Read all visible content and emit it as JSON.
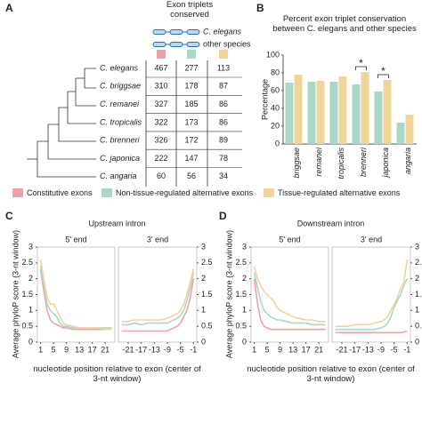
{
  "panel_labels": [
    "A",
    "B",
    "C",
    "D"
  ],
  "table": {
    "header": {
      "title": "Exon triplets conserved",
      "ref_label": "C. elegans",
      "other_label": "other species"
    },
    "column_colors": [
      "#eba3a8",
      "#a9d8c8",
      "#f1d49a"
    ],
    "rows": [
      [
        "C. elegans",
        "467",
        "277",
        "113"
      ],
      [
        "C. briggsae",
        "310",
        "178",
        "87"
      ],
      [
        "C. remanei",
        "327",
        "185",
        "86"
      ],
      [
        "C. tropicalis",
        "322",
        "173",
        "86"
      ],
      [
        "C. brenneri",
        "326",
        "172",
        "89"
      ],
      [
        "C. japonica",
        "222",
        "147",
        "78"
      ],
      [
        "C. angaria",
        "60",
        "56",
        "34"
      ]
    ]
  },
  "line_panels": [
    {
      "title": "Upstream intron",
      "xlabel": "nucleotide position relative to exon (center of 3-nt window)",
      "ylabel": "Average phyloP score (3-nt window)"
    },
    {
      "title": "Downstream intron",
      "xlabel": "nucleotide position relative to exon (center of 3-nt window)",
      "ylabel": "Average phyloP score (3-nt window)"
    }
  ],
  "chart_data": [
    {
      "type": "bar",
      "title": "Percent exon triplet conservation between C. elegans and other species",
      "ylabel": "Percentage",
      "categories": [
        "briggsae",
        "remanei",
        "tropicalis",
        "brenneri",
        "japonica",
        "angaria"
      ],
      "series": [
        {
          "color": "#a9d8c8",
          "values": [
            69,
            70,
            70,
            67,
            59,
            24
          ]
        },
        {
          "color": "#f1d49a",
          "values": [
            78,
            71,
            76,
            81,
            72,
            33
          ]
        }
      ],
      "annotations": [
        {
          "text": "*",
          "category": "brenneri"
        },
        {
          "text": "*",
          "category": "japonica"
        }
      ],
      "ylim": [
        0,
        100
      ],
      "yticks": [
        0,
        20,
        40,
        60,
        80,
        100
      ]
    },
    {
      "type": "line",
      "title": "5' end",
      "yaxis_side": "left",
      "x": [
        1,
        2,
        3,
        4,
        5,
        6,
        7,
        8,
        9,
        11,
        13,
        15,
        17,
        19,
        21,
        23
      ],
      "series": [
        {
          "name": "Constitutive exons",
          "color": "#eba3a8",
          "values": [
            2.3,
            1.6,
            1.0,
            0.7,
            0.6,
            0.55,
            0.5,
            0.45,
            0.45,
            0.4,
            0.4,
            0.4,
            0.4,
            0.4,
            0.4,
            0.4
          ]
        },
        {
          "name": "Non-tissue-regulated alternative exons",
          "color": "#a9d8c8",
          "values": [
            2.4,
            1.8,
            1.2,
            1.0,
            0.9,
            0.8,
            0.6,
            0.5,
            0.5,
            0.45,
            0.45,
            0.45,
            0.45,
            0.45,
            0.45,
            0.45
          ]
        },
        {
          "name": "Tissue-regulated alternative exons",
          "color": "#f1d49a",
          "values": [
            2.6,
            2.0,
            1.4,
            1.2,
            1.2,
            1.0,
            0.8,
            0.6,
            0.55,
            0.5,
            0.45,
            0.45,
            0.45,
            0.45,
            0.4,
            0.4
          ]
        }
      ],
      "xlim": [
        0,
        24
      ],
      "xticks": [
        1,
        5,
        9,
        13,
        17,
        21
      ],
      "ylim": [
        0,
        3
      ],
      "yticks": [
        0,
        0.5,
        1,
        1.5,
        2,
        2.5,
        3
      ]
    },
    {
      "type": "line",
      "title": "3' end",
      "yaxis_side": "right",
      "x": [
        -23,
        -21,
        -19,
        -17,
        -15,
        -13,
        -11,
        -9,
        -8,
        -7,
        -6,
        -5,
        -4,
        -3,
        -2,
        -1
      ],
      "series": [
        {
          "color": "#eba3a8",
          "values": [
            0.35,
            0.35,
            0.35,
            0.35,
            0.35,
            0.35,
            0.35,
            0.35,
            0.4,
            0.45,
            0.5,
            0.6,
            0.8,
            1.0,
            1.4,
            2.0
          ]
        },
        {
          "color": "#a9d8c8",
          "values": [
            0.55,
            0.55,
            0.6,
            0.55,
            0.6,
            0.6,
            0.6,
            0.6,
            0.65,
            0.7,
            0.75,
            0.85,
            1.0,
            1.3,
            1.7,
            2.2
          ]
        },
        {
          "color": "#f1d49a",
          "values": [
            0.65,
            0.65,
            0.7,
            0.7,
            0.7,
            0.7,
            0.7,
            0.75,
            0.8,
            0.85,
            0.9,
            1.0,
            1.2,
            1.5,
            1.9,
            2.3
          ]
        }
      ],
      "xlim": [
        -24,
        0
      ],
      "xticks": [
        -21,
        -17,
        -13,
        -9,
        -5,
        -1
      ],
      "ylim": [
        0,
        3
      ],
      "yticks": [
        0,
        0.5,
        1,
        1.5,
        2,
        2.5,
        3
      ]
    },
    {
      "type": "line",
      "title": "5' end",
      "yaxis_side": "left",
      "x": [
        1,
        2,
        3,
        4,
        5,
        6,
        7,
        8,
        9,
        11,
        13,
        15,
        17,
        19,
        21,
        23
      ],
      "series": [
        {
          "color": "#eba3a8",
          "values": [
            2.0,
            1.2,
            0.7,
            0.5,
            0.45,
            0.4,
            0.4,
            0.4,
            0.4,
            0.4,
            0.4,
            0.4,
            0.4,
            0.4,
            0.4,
            0.4
          ]
        },
        {
          "color": "#a9d8c8",
          "values": [
            2.2,
            1.7,
            1.3,
            1.0,
            0.9,
            0.8,
            0.75,
            0.7,
            0.7,
            0.65,
            0.6,
            0.6,
            0.6,
            0.55,
            0.55,
            0.55
          ]
        },
        {
          "color": "#f1d49a",
          "values": [
            2.4,
            2.0,
            1.8,
            1.6,
            1.5,
            1.4,
            1.3,
            1.1,
            1.0,
            0.9,
            0.8,
            0.75,
            0.7,
            0.7,
            0.65,
            0.65
          ]
        }
      ],
      "xlim": [
        0,
        24
      ],
      "xticks": [
        1,
        5,
        9,
        13,
        17,
        21
      ],
      "ylim": [
        0,
        3
      ],
      "yticks": [
        0,
        0.5,
        1,
        1.5,
        2,
        2.5,
        3
      ]
    },
    {
      "type": "line",
      "title": "3' end",
      "yaxis_side": "right",
      "x": [
        -23,
        -21,
        -19,
        -17,
        -15,
        -13,
        -11,
        -9,
        -8,
        -7,
        -6,
        -5,
        -4,
        -3,
        -2,
        -1
      ],
      "series": [
        {
          "color": "#eba3a8",
          "values": [
            0.3,
            0.3,
            0.3,
            0.3,
            0.3,
            0.3,
            0.3,
            0.3,
            0.3,
            0.3,
            0.3,
            0.3,
            0.3,
            0.3,
            0.32,
            0.35
          ]
        },
        {
          "color": "#a9d8c8",
          "values": [
            0.4,
            0.4,
            0.4,
            0.4,
            0.4,
            0.4,
            0.4,
            0.45,
            0.5,
            0.6,
            0.8,
            1.1,
            1.3,
            1.5,
            1.8,
            2.0
          ]
        },
        {
          "color": "#f1d49a",
          "values": [
            0.5,
            0.5,
            0.5,
            0.55,
            0.55,
            0.55,
            0.6,
            0.65,
            0.7,
            0.8,
            1.0,
            1.2,
            1.4,
            1.7,
            1.9,
            2.6
          ]
        }
      ],
      "xlim": [
        -24,
        0
      ],
      "xticks": [
        -21,
        -17,
        -13,
        -9,
        -5,
        -1
      ],
      "ylim": [
        0,
        3
      ],
      "yticks": [
        0,
        0.5,
        1,
        1.5,
        2,
        2.5,
        3
      ]
    }
  ]
}
